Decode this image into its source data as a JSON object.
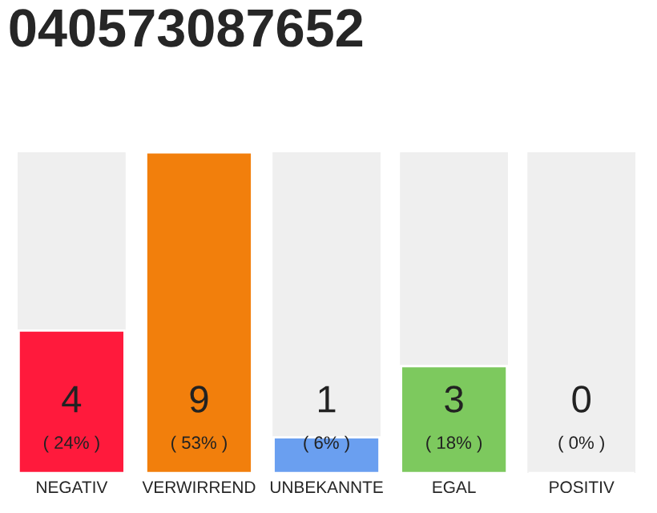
{
  "chart_data": {
    "type": "bar",
    "title": "040573087652",
    "categories": [
      "NEGATIV",
      "VERWIRREND",
      "UNBEKANNTE",
      "EGAL",
      "POSITIV"
    ],
    "values": [
      4,
      9,
      1,
      3,
      0
    ],
    "colors": [
      "#ff1a3c",
      "#f27f0c",
      "#6a9ff0",
      "#7dc95e",
      "#efefef"
    ],
    "data_labels": true,
    "annotations": [
      "( 24% )",
      "( 53% )",
      "( 6% )",
      "( 18% )",
      "( 0% )"
    ],
    "tick_labels": "x",
    "grid": false,
    "legend": false
  }
}
